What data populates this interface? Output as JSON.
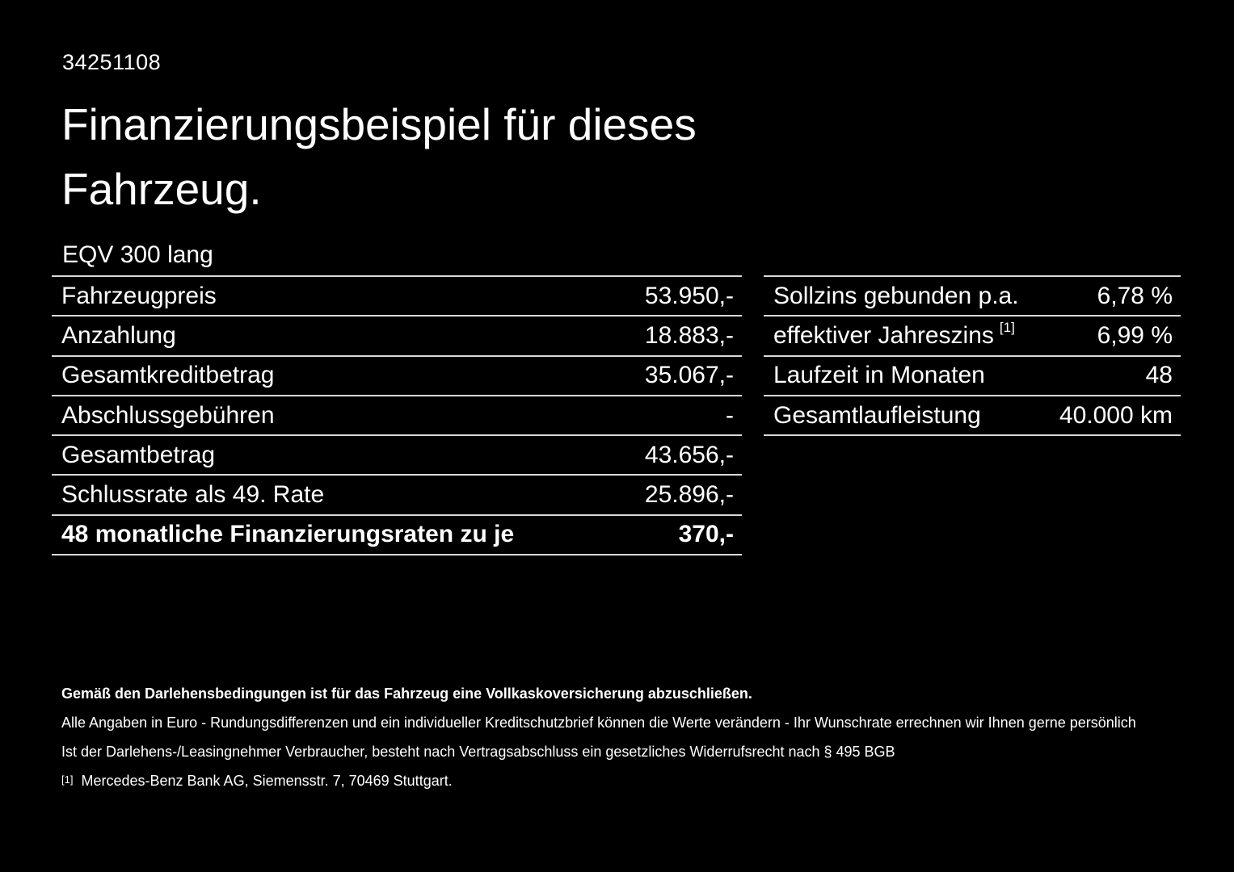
{
  "doc_id": "34251108",
  "title_line1": "Finanzierungsbeispiel für dieses",
  "title_line2": "Fahrzeug.",
  "model": "EQV 300 lang",
  "left_table": {
    "rows": [
      {
        "label": "Fahrzeugpreis",
        "value": "53.950,-"
      },
      {
        "label": "Anzahlung",
        "value": "18.883,-"
      },
      {
        "label": "Gesamtkreditbetrag",
        "value": "35.067,-"
      },
      {
        "label": "Abschlussgebühren",
        "value": "-"
      },
      {
        "label": "Gesamtbetrag",
        "value": "43.656,-"
      },
      {
        "label": "Schlussrate als 49. Rate",
        "value": "25.896,-"
      },
      {
        "label": "48 monatliche Finanzierungsraten zu je",
        "value": "370,-",
        "bold": true
      }
    ]
  },
  "right_table": {
    "rows": [
      {
        "label": "Sollzins gebunden p.a.",
        "value": "6,78 %"
      },
      {
        "label": "effektiver Jahreszins",
        "footnote_marker": "[1]",
        "value": "6,99 %"
      },
      {
        "label": "Laufzeit in Monaten",
        "value": "48"
      },
      {
        "label": "Gesamtlaufleistung",
        "value": "40.000 km"
      }
    ]
  },
  "footer": {
    "bold_note": "Gemäß den Darlehensbedingungen ist für das Fahrzeug eine Vollkaskoversicherung abzuschließen.",
    "note1": "Alle Angaben in Euro - Rundungsdifferenzen und ein individueller Kreditschutzbrief können die Werte verändern - Ihr Wunschrate errechnen wir Ihnen gerne persönlich",
    "note2": "Ist der Darlehens-/Leasingnehmer Verbraucher, besteht nach Vertragsabschluss ein gesetzliches Widerrufsrecht nach § 495 BGB",
    "footnote_marker": "[1]",
    "footnote_text": "Mercedes-Benz Bank AG, Siemensstr. 7, 70469 Stuttgart."
  },
  "colors": {
    "background": "#000000",
    "text": "#ffffff",
    "divider": "#d9d9d9"
  }
}
